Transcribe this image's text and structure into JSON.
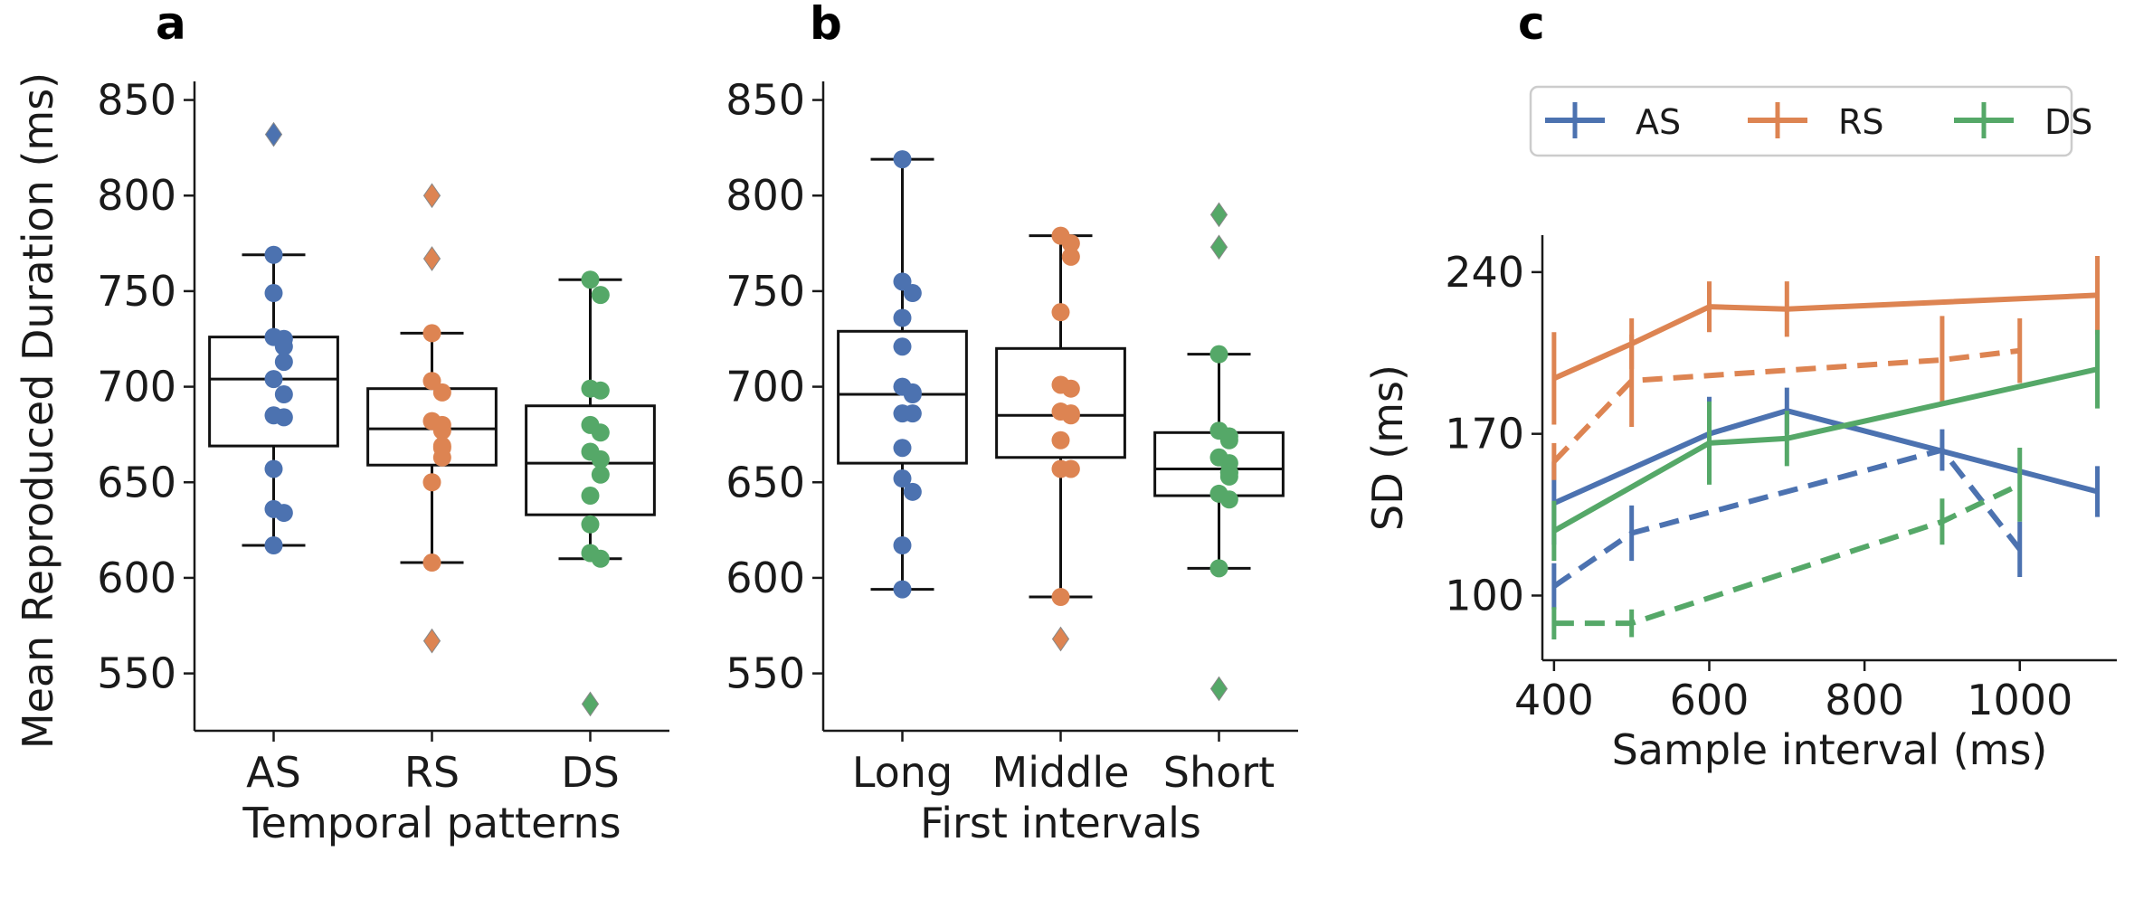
{
  "colors": {
    "AS": "#4c72b0",
    "RS": "#dd8452",
    "DS": "#55a868",
    "axis": "#1a1a1a"
  },
  "panels": [
    "a",
    "b",
    "c"
  ],
  "chart_data": [
    {
      "type": "box",
      "xlabel": "Temporal patterns",
      "ylabel": "Mean Reproduced Duration (ms)",
      "ylim": [
        520,
        855
      ],
      "yticks": [
        550,
        600,
        650,
        700,
        750,
        800,
        850
      ],
      "categories": [
        "AS",
        "RS",
        "DS"
      ],
      "series_colors": [
        "AS",
        "RS",
        "DS"
      ],
      "boxes": [
        {
          "category": "AS",
          "whisker_low": 617,
          "q1": 669,
          "median": 704,
          "q3": 726,
          "whisker_high": 769,
          "outliers": [
            832
          ]
        },
        {
          "category": "RS",
          "whisker_low": 608,
          "q1": 659,
          "median": 678,
          "q3": 699,
          "whisker_high": 728,
          "outliers": [
            800,
            767,
            567
          ]
        },
        {
          "category": "DS",
          "whisker_low": 610,
          "q1": 633,
          "median": 660,
          "q3": 690,
          "whisker_high": 756,
          "outliers": [
            534
          ]
        }
      ],
      "points": [
        [
          769,
          749,
          726,
          725,
          721,
          713,
          704,
          696,
          685,
          684,
          657,
          636,
          634,
          617
        ],
        [
          728,
          703,
          697,
          682,
          680,
          677,
          669,
          668,
          663,
          650,
          608
        ],
        [
          756,
          748,
          699,
          698,
          680,
          676,
          666,
          662,
          654,
          643,
          628,
          613,
          610
        ]
      ]
    },
    {
      "type": "box",
      "xlabel": "First intervals",
      "ylabel": "",
      "ylim": [
        520,
        855
      ],
      "yticks": [
        550,
        600,
        650,
        700,
        750,
        800,
        850
      ],
      "categories": [
        "Long",
        "Middle",
        "Short"
      ],
      "series_colors": [
        "AS",
        "RS",
        "DS"
      ],
      "boxes": [
        {
          "category": "Long",
          "whisker_low": 594,
          "q1": 660,
          "median": 696,
          "q3": 729,
          "whisker_high": 819,
          "outliers": []
        },
        {
          "category": "Middle",
          "whisker_low": 590,
          "q1": 663,
          "median": 685,
          "q3": 720,
          "whisker_high": 779,
          "outliers": [
            568
          ]
        },
        {
          "category": "Short",
          "whisker_low": 605,
          "q1": 643,
          "median": 657,
          "q3": 676,
          "whisker_high": 717,
          "outliers": [
            790,
            773,
            542
          ]
        }
      ],
      "points": [
        [
          819,
          755,
          749,
          736,
          721,
          700,
          697,
          696,
          686,
          686,
          668,
          652,
          645,
          617,
          594
        ],
        [
          779,
          775,
          768,
          739,
          701,
          699,
          687,
          686,
          685,
          672,
          657,
          657,
          590
        ],
        [
          717,
          677,
          674,
          672,
          663,
          660,
          655,
          655,
          653,
          644,
          641,
          605
        ]
      ]
    },
    {
      "type": "line",
      "xlabel": "Sample interval (ms)",
      "ylabel": "SD (ms)",
      "xlim": [
        385,
        1125
      ],
      "ylim": [
        72,
        256
      ],
      "xticks": [
        400,
        600,
        800,
        1000
      ],
      "yticks": [
        100,
        170,
        240
      ],
      "legend": {
        "placement": "top",
        "entries": [
          "AS",
          "RS",
          "DS"
        ]
      },
      "series": [
        {
          "name": "AS",
          "style": "solid",
          "color": "AS",
          "x": [
            400,
            600,
            700,
            1100
          ],
          "y": [
            140,
            170,
            180,
            145
          ],
          "err": [
            18,
            16,
            10,
            11
          ]
        },
        {
          "name": "AS",
          "style": "dashed",
          "color": "AS",
          "x": [
            400,
            500,
            900,
            1000
          ],
          "y": [
            104,
            127,
            163,
            120
          ],
          "err": [
            10,
            12,
            9,
            12
          ]
        },
        {
          "name": "RS",
          "style": "solid",
          "color": "RS",
          "x": [
            400,
            500,
            600,
            700,
            1100
          ],
          "y": [
            194,
            209,
            225,
            224,
            230
          ],
          "err": [
            20,
            11,
            11,
            12,
            17
          ]
        },
        {
          "name": "RS",
          "style": "dashed",
          "color": "RS",
          "x": [
            400,
            500,
            900,
            1000
          ],
          "y": [
            158,
            193,
            202,
            206
          ],
          "err": [
            8,
            20,
            19,
            14
          ]
        },
        {
          "name": "DS",
          "style": "solid",
          "color": "DS",
          "x": [
            400,
            600,
            700,
            1100
          ],
          "y": [
            128,
            166,
            168,
            198
          ],
          "err": [
            13,
            18,
            12,
            17
          ]
        },
        {
          "name": "DS",
          "style": "dashed",
          "color": "DS",
          "x": [
            400,
            500,
            900,
            1000
          ],
          "y": [
            88,
            88,
            132,
            148
          ],
          "err": [
            7,
            6,
            10,
            16
          ]
        }
      ]
    }
  ]
}
